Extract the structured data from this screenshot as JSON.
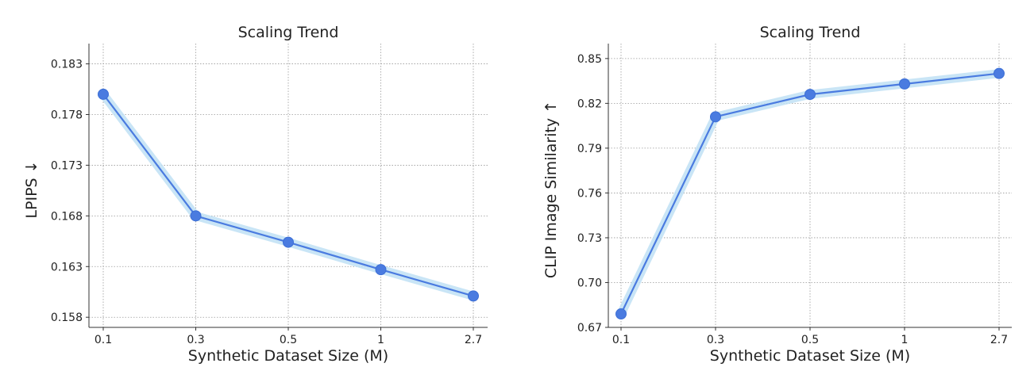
{
  "chart_data": [
    {
      "type": "line",
      "title": "Scaling Trend",
      "xlabel": "Synthetic Dataset Size (M)",
      "ylabel": "LPIPS ↓",
      "categories": [
        "0.1",
        "0.3",
        "0.5",
        "1",
        "2.7"
      ],
      "series": [
        {
          "values": [
            0.18,
            0.168,
            0.1654,
            0.1627,
            0.1601
          ]
        }
      ],
      "yticks": [
        "0.158",
        "0.163",
        "0.168",
        "0.173",
        "0.178",
        "0.183"
      ],
      "ylim": [
        0.157,
        0.185
      ],
      "grid": true,
      "colors": {
        "line": "#4a7be0",
        "band": "#bfe0f5",
        "marker": "#4a7be0"
      }
    },
    {
      "type": "line",
      "title": "Scaling Trend",
      "xlabel": "Synthetic Dataset Size (M)",
      "ylabel": "CLIP Image Similarity ↑",
      "categories": [
        "0.1",
        "0.3",
        "0.5",
        "1",
        "2.7"
      ],
      "series": [
        {
          "values": [
            0.679,
            0.811,
            0.826,
            0.833,
            0.84
          ]
        }
      ],
      "yticks": [
        "0.67",
        "0.70",
        "0.73",
        "0.76",
        "0.79",
        "0.82",
        "0.85"
      ],
      "ylim": [
        0.67,
        0.86
      ],
      "grid": true,
      "colors": {
        "line": "#4a7be0",
        "band": "#bfe0f5",
        "marker": "#4a7be0"
      }
    }
  ]
}
